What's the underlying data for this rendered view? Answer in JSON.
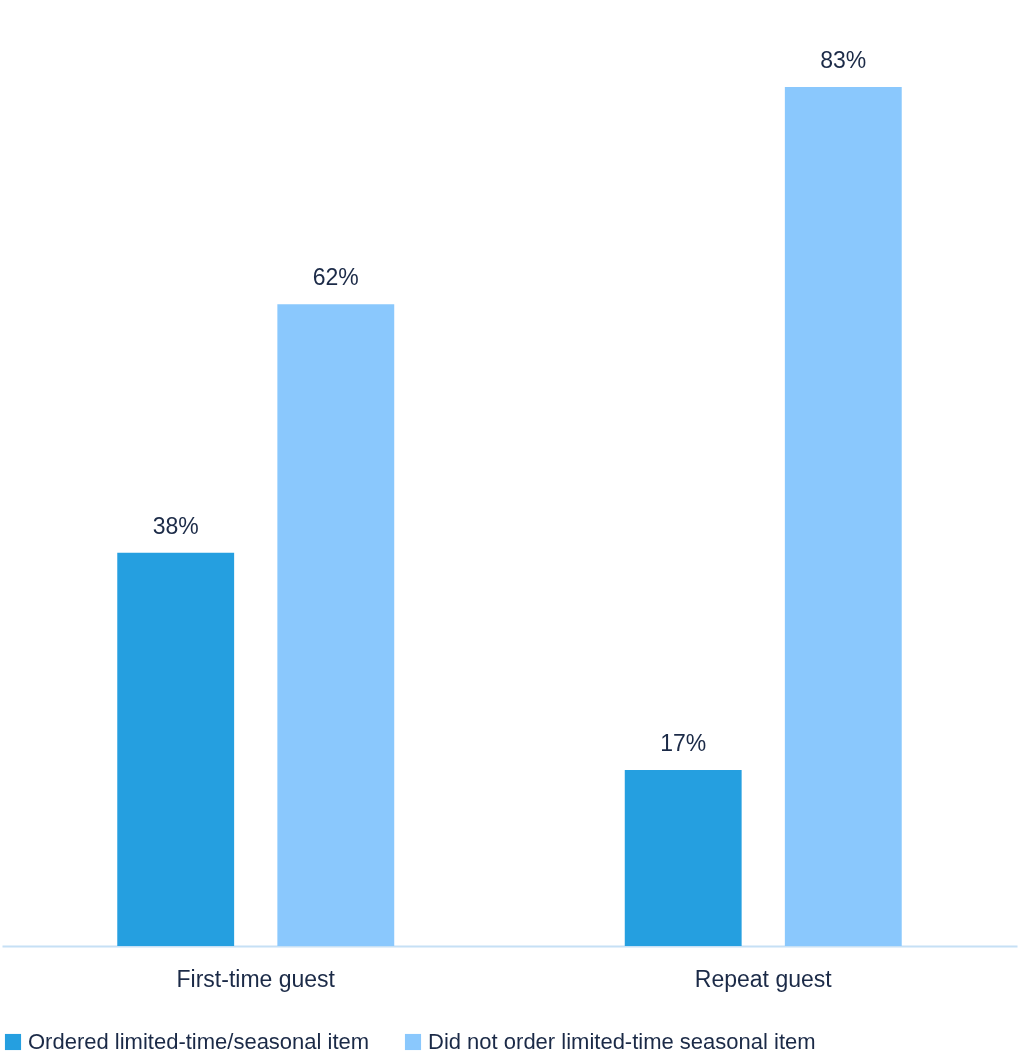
{
  "chart_data": {
    "type": "bar",
    "categories": [
      "First-time guest",
      "Repeat guest"
    ],
    "series": [
      {
        "name": "Ordered limited-time/seasonal item",
        "color": "#259fe0",
        "values": [
          38,
          17
        ],
        "value_labels": [
          "38%",
          "17%"
        ]
      },
      {
        "name": "Did not order limited-time seasonal item",
        "color": "#8ac8fd",
        "values": [
          62,
          83
        ],
        "value_labels": [
          "62%",
          "83%"
        ]
      }
    ],
    "legend": "bottom left",
    "grid": false,
    "tick_labels": "x"
  }
}
